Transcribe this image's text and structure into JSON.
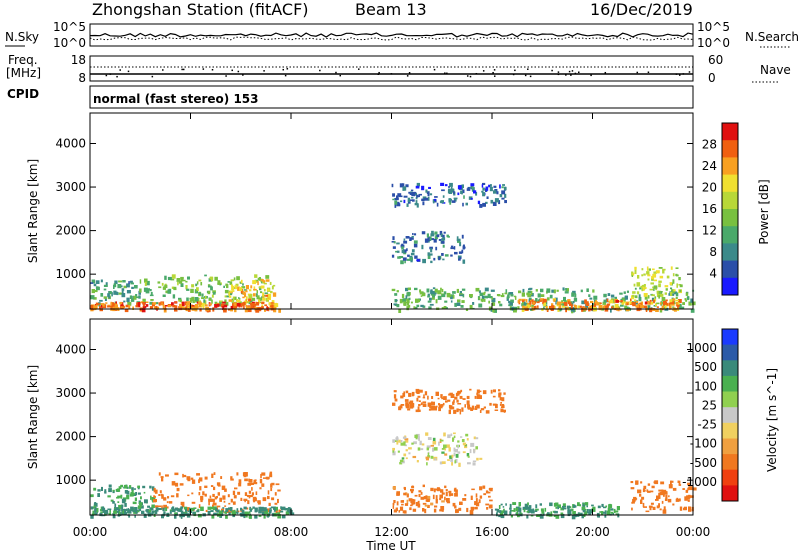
{
  "header": {
    "station": "Zhongshan Station (fitACF)",
    "beam": "Beam 13",
    "date": "16/Dec/2019"
  },
  "noise_panel": {
    "left_label": "N.Sky",
    "left_ticks": [
      "10^5",
      "10^0"
    ],
    "right_label": "N.Search",
    "right_ticks": [
      "10^5",
      "10^0"
    ]
  },
  "freq_panel": {
    "left_label_1": "Freq.",
    "left_label_2": "[MHz]",
    "left_ticks": [
      "18",
      "8"
    ],
    "right_label": "Nave",
    "right_ticks": [
      "60",
      "0"
    ]
  },
  "cpid_panel": {
    "label": "CPID",
    "mode_text": "normal (fast stereo) 153"
  },
  "chart_data": [
    {
      "type": "heatmap",
      "title": "",
      "xlabel": "Time UT",
      "ylabel": "Slant Range [km]",
      "x_ticks": [
        "00:00",
        "04:00",
        "08:00",
        "12:00",
        "16:00",
        "20:00",
        "00:00"
      ],
      "x_hours": [
        0,
        4,
        8,
        12,
        16,
        20,
        24
      ],
      "y_ticks": [
        1000,
        2000,
        3000,
        4000
      ],
      "ylim": [
        200,
        4700
      ],
      "colorbar": {
        "label": "Power [dB]",
        "ticks": [
          "28",
          "24",
          "20",
          "16",
          "12",
          "8",
          "4"
        ],
        "tick_values": [
          28,
          24,
          20,
          16,
          12,
          8,
          4
        ],
        "range": [
          0,
          32
        ],
        "colors": [
          "#1a1aff",
          "#2b4fa8",
          "#3b8a8a",
          "#4aa96a",
          "#78c040",
          "#b8d838",
          "#f0e030",
          "#f8a020",
          "#f06010",
          "#e01010"
        ]
      },
      "regions": [
        {
          "t": [
            0.0,
            2.0
          ],
          "r": [
            350,
            900
          ],
          "value": 10
        },
        {
          "t": [
            2.0,
            7.0
          ],
          "r": [
            350,
            1000
          ],
          "value": 14
        },
        {
          "t": [
            5.5,
            7.3
          ],
          "r": [
            350,
            900
          ],
          "value": 22
        },
        {
          "t": [
            0.0,
            7.5
          ],
          "r": [
            200,
            380
          ],
          "value": 26
        },
        {
          "t": [
            12.0,
            15.0
          ],
          "r": [
            1300,
            2000
          ],
          "value": 7
        },
        {
          "t": [
            12.0,
            16.5
          ],
          "r": [
            2600,
            3100
          ],
          "value": 6
        },
        {
          "t": [
            12.0,
            24.0
          ],
          "r": [
            200,
            700
          ],
          "value": 12
        },
        {
          "t": [
            17.0,
            23.5
          ],
          "r": [
            200,
            450
          ],
          "value": 25
        },
        {
          "t": [
            21.5,
            23.5
          ],
          "r": [
            500,
            1200
          ],
          "value": 18
        }
      ]
    },
    {
      "type": "heatmap",
      "title": "",
      "xlabel": "Time UT",
      "ylabel": "Slant Range [km]",
      "x_ticks": [
        "00:00",
        "04:00",
        "08:00",
        "12:00",
        "16:00",
        "20:00",
        "00:00"
      ],
      "x_hours": [
        0,
        4,
        8,
        12,
        16,
        20,
        24
      ],
      "y_ticks": [
        1000,
        2000,
        3000,
        4000
      ],
      "ylim": [
        200,
        4700
      ],
      "colorbar": {
        "label": "Velocity [m s^-1]",
        "ticks": [
          "1000",
          "500",
          "100",
          "25",
          "-25",
          "-100",
          "-500",
          "-1000"
        ],
        "colors": [
          "#e01010",
          "#f04010",
          "#f07820",
          "#f0a040",
          "#f0d060",
          "#c8c8c8",
          "#90d050",
          "#4ab050",
          "#3a8a7a",
          "#2b5aa8",
          "#1a3aff"
        ]
      },
      "regions": [
        {
          "t": [
            0.0,
            2.5
          ],
          "r": [
            300,
            900
          ],
          "value": 100
        },
        {
          "t": [
            2.5,
            7.5
          ],
          "r": [
            300,
            1200
          ],
          "value": -300
        },
        {
          "t": [
            0.0,
            8.0
          ],
          "r": [
            200,
            400
          ],
          "value": 150
        },
        {
          "t": [
            12.0,
            15.5
          ],
          "r": [
            1400,
            2100
          ],
          "value": 0
        },
        {
          "t": [
            12.0,
            16.5
          ],
          "r": [
            2600,
            3100
          ],
          "value": -300
        },
        {
          "t": [
            12.0,
            16.0
          ],
          "r": [
            300,
            900
          ],
          "value": -200
        },
        {
          "t": [
            16.0,
            21.0
          ],
          "r": [
            200,
            500
          ],
          "value": 100
        },
        {
          "t": [
            21.5,
            24.0
          ],
          "r": [
            300,
            1000
          ],
          "value": -300
        }
      ]
    }
  ]
}
